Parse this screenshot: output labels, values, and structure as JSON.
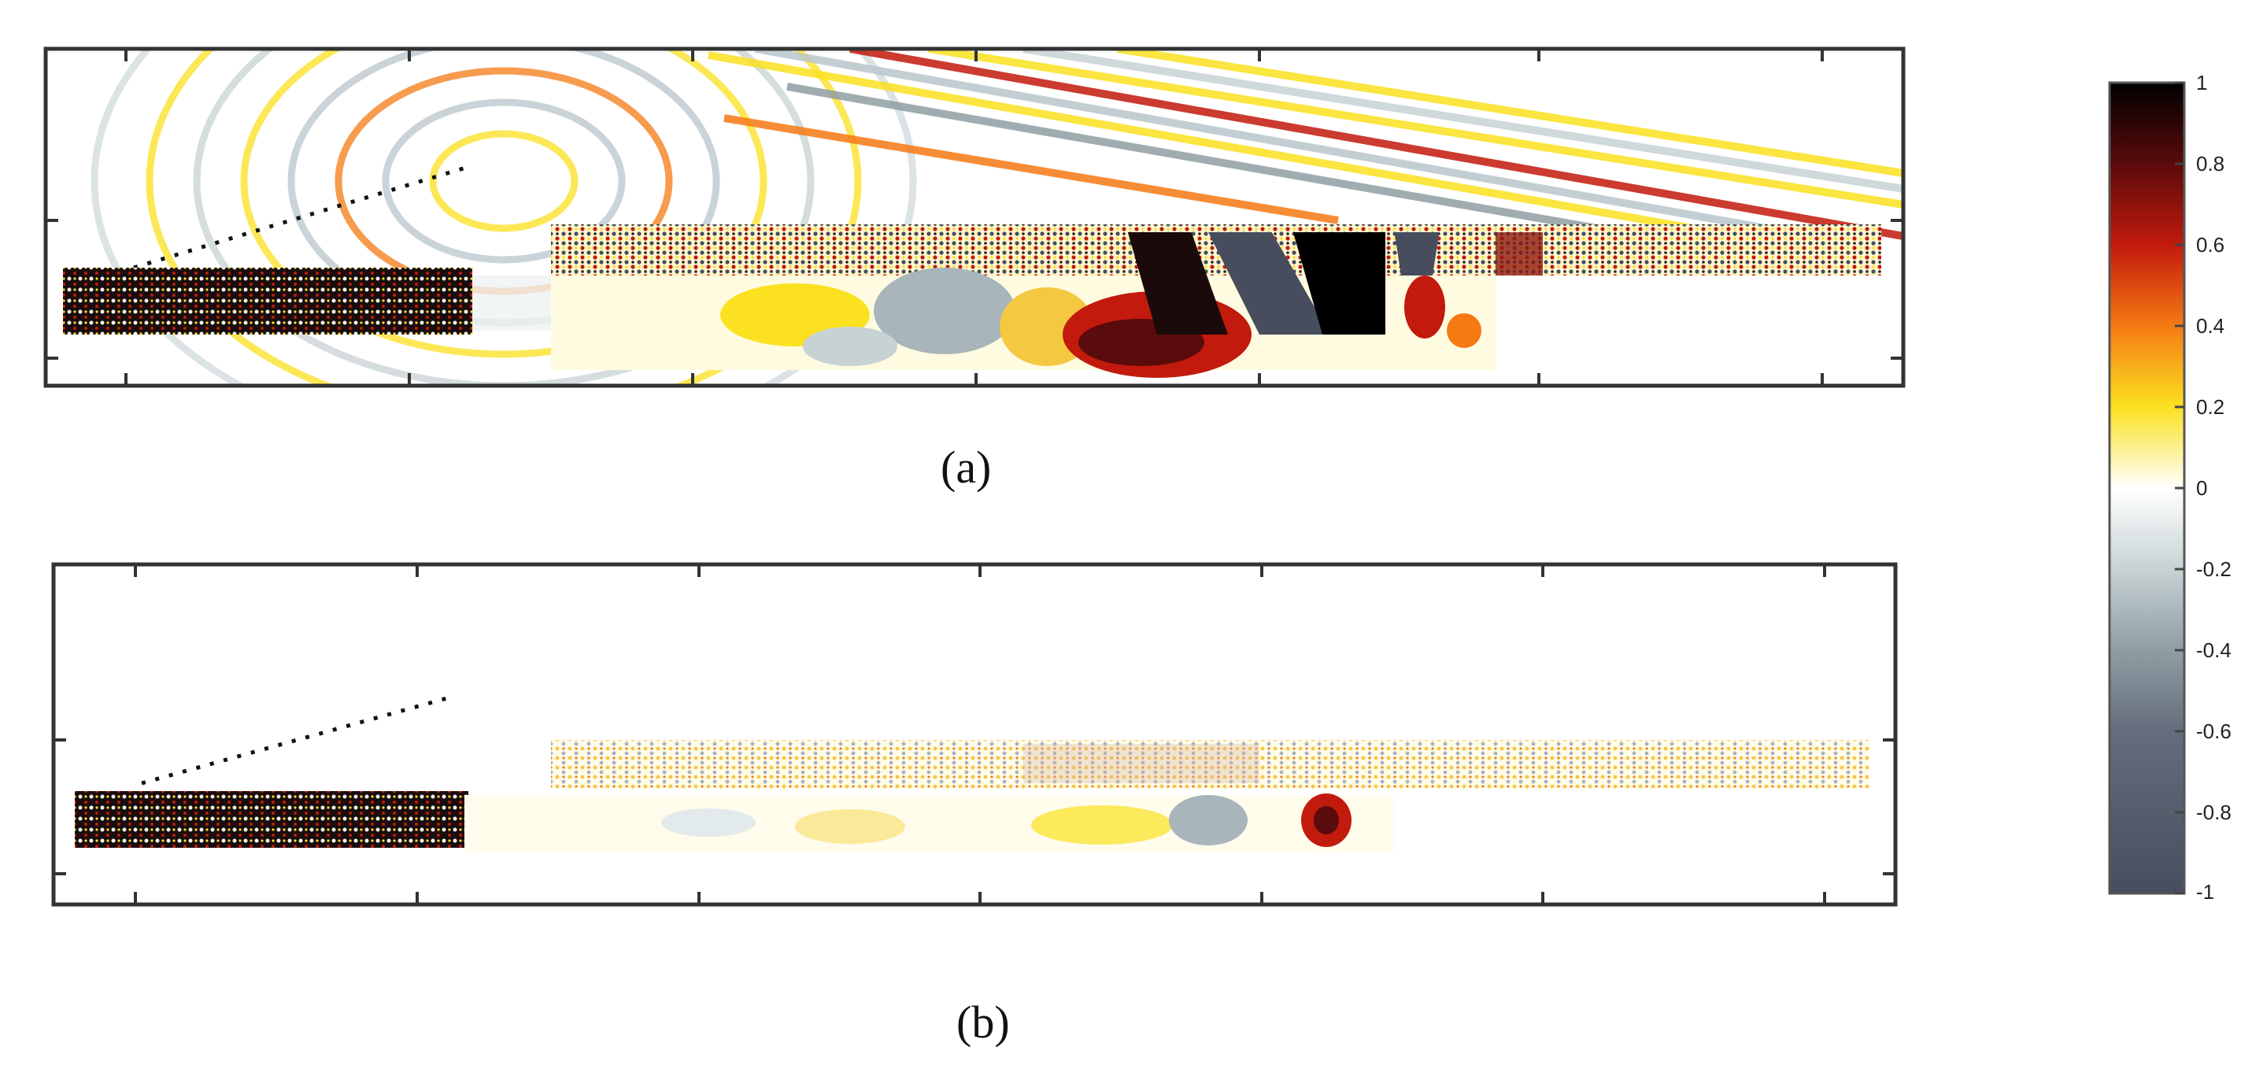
{
  "panels": [
    {
      "id": "a",
      "caption": "(a)"
    },
    {
      "id": "b",
      "caption": "(b)"
    }
  ],
  "colorbar": {
    "min": -1,
    "max": 1,
    "tick_labels": [
      "1",
      "0.8",
      "0.6",
      "0.4",
      "0.2",
      "0",
      "-0.2",
      "-0.4",
      "-0.6",
      "-0.8",
      "-1"
    ],
    "colors": [
      "#000000",
      "#5a0b0b",
      "#c21a0d",
      "#f57a14",
      "#fbe11f",
      "#ffffff",
      "#c7d2d4",
      "#8f9ea3",
      "#646d7c",
      "#474d5c"
    ]
  }
}
